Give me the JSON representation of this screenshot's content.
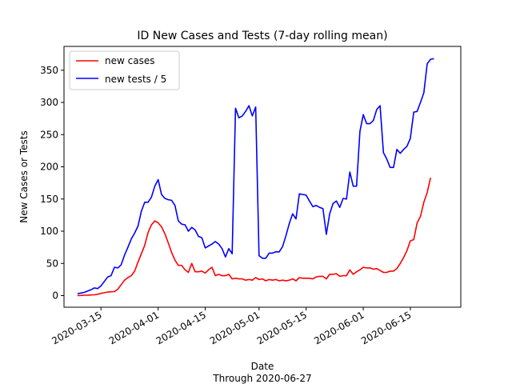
{
  "chart_data": {
    "type": "line",
    "title": "ID New Cases and Tests (7-day rolling mean)",
    "xlabel": "Date",
    "xlabel_sub": "Through 2020-06-27",
    "ylabel": "New Cases or Tests",
    "xlim": [
      "2020-03-04",
      "2020-06-30"
    ],
    "ylim": [
      -18,
      387
    ],
    "x_ticks": [
      "2020-03-15",
      "2020-04-01",
      "2020-04-15",
      "2020-05-01",
      "2020-05-15",
      "2020-06-01",
      "2020-06-15"
    ],
    "y_ticks": [
      0,
      50,
      100,
      150,
      200,
      250,
      300,
      350
    ],
    "grid": false,
    "legend": {
      "placement": "top-left"
    },
    "x_start": "2020-03-08",
    "series": [
      {
        "name": "new cases",
        "color": "#ff0000",
        "values": [
          0,
          0.3,
          0.6,
          0.8,
          1,
          1.3,
          2,
          3.5,
          4.5,
          5.5,
          6,
          6.2,
          10,
          17,
          24,
          28,
          31,
          38,
          52,
          65,
          78,
          98,
          110,
          116,
          113,
          107,
          96,
          82,
          67,
          55,
          47,
          47,
          40,
          36,
          50,
          37,
          37,
          38,
          35,
          40,
          44,
          31,
          33,
          31,
          31,
          33,
          26,
          27,
          26,
          26,
          24,
          25,
          24,
          28,
          25,
          26,
          23,
          25,
          24,
          25,
          23,
          24,
          23,
          24,
          26,
          23,
          28,
          27,
          27,
          27,
          26,
          29,
          30,
          30,
          26,
          33,
          33,
          34,
          30,
          31,
          31,
          40,
          33,
          37,
          40,
          44,
          43,
          43,
          41,
          42,
          39,
          36,
          36,
          38,
          38,
          42,
          50,
          59,
          70,
          85,
          87,
          113,
          123,
          145,
          160,
          183
        ]
      },
      {
        "name": "new tests / 5",
        "color": "#0000ff",
        "values": [
          3,
          4,
          5,
          7,
          9,
          12,
          11,
          15,
          22,
          29,
          31,
          44,
          43,
          48,
          63,
          75,
          88,
          97,
          108,
          131,
          145,
          145,
          153,
          170,
          180,
          157,
          151,
          149,
          148,
          140,
          116,
          111,
          110,
          100,
          106,
          102,
          92,
          90,
          74,
          77,
          80,
          84,
          80,
          73,
          60,
          73,
          65,
          291,
          276,
          279,
          286,
          295,
          279,
          293,
          62,
          58,
          58,
          66,
          66,
          68,
          68,
          76,
          93,
          112,
          127,
          119,
          158,
          157,
          156,
          147,
          138,
          140,
          137,
          135,
          95,
          127,
          143,
          147,
          137,
          151,
          150,
          192,
          170,
          170,
          255,
          281,
          267,
          267,
          272,
          289,
          295,
          222,
          212,
          199,
          199,
          227,
          221,
          227,
          232,
          244,
          285,
          286,
          300,
          315,
          360,
          367,
          368
        ]
      }
    ]
  }
}
